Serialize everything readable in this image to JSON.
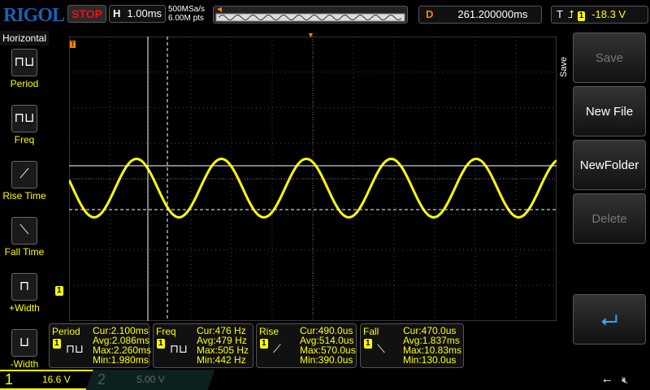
{
  "header": {
    "logo": "RIGOL",
    "run_state": "STOP",
    "timebase_label": "H",
    "timebase": "1.00ms",
    "sample_rate": "500MSa/s",
    "memory_depth": "6.00M pts",
    "delay_label": "D",
    "delay": "261.200000ms",
    "trigger_label": "T",
    "trigger_channel": "1",
    "trigger_level": "-18.3 V",
    "trigger_edge_icon": "rising-edge-icon"
  },
  "sidebar": {
    "title": "Horizontal",
    "items": [
      {
        "label": "Period",
        "icon": "period-icon"
      },
      {
        "label": "Freq",
        "icon": "freq-icon"
      },
      {
        "label": "Rise Time",
        "icon": "rise-time-icon"
      },
      {
        "label": "Fall Time",
        "icon": "fall-time-icon"
      },
      {
        "label": "+Width",
        "icon": "pos-width-icon"
      },
      {
        "label": "-Width",
        "icon": "neg-width-icon"
      }
    ]
  },
  "right_menu": {
    "title": "Save",
    "items": [
      {
        "label": "Save",
        "enabled": false
      },
      {
        "label": "New File",
        "enabled": true
      },
      {
        "label": "NewFolder",
        "enabled": true
      },
      {
        "label": "Delete",
        "enabled": false
      }
    ],
    "enter_icon": "enter-icon"
  },
  "measurements": [
    {
      "name": "Period",
      "channel": "1",
      "cur": "Cur:2.100ms",
      "avg": "Avg:2.086ms",
      "max": "Max:2.260ms",
      "min": "Min:1.980ms"
    },
    {
      "name": "Freq",
      "channel": "1",
      "cur": "Cur:476 Hz",
      "avg": "Avg:479 Hz",
      "max": "Max:505 Hz",
      "min": "Min:442 Hz"
    },
    {
      "name": "Rise",
      "channel": "1",
      "cur": "Cur:490.0us",
      "avg": "Avg:514.0us",
      "max": "Max:570.0us",
      "min": "Min:390.0us"
    },
    {
      "name": "Fall",
      "channel": "1",
      "cur": "Cur:470.0us",
      "avg": "Avg:1.837ms",
      "max": "Max:10.83ms",
      "min": "Min:130.0us"
    }
  ],
  "channels": [
    {
      "num": "1",
      "scale": "16.6 V",
      "color": "#ffff00"
    },
    {
      "num": "2",
      "scale": "5.00 V",
      "color": "#555555"
    }
  ],
  "marker": {
    "channel": "1"
  },
  "colors": {
    "trace": "#ffff00",
    "accent": "#ff8000"
  }
}
